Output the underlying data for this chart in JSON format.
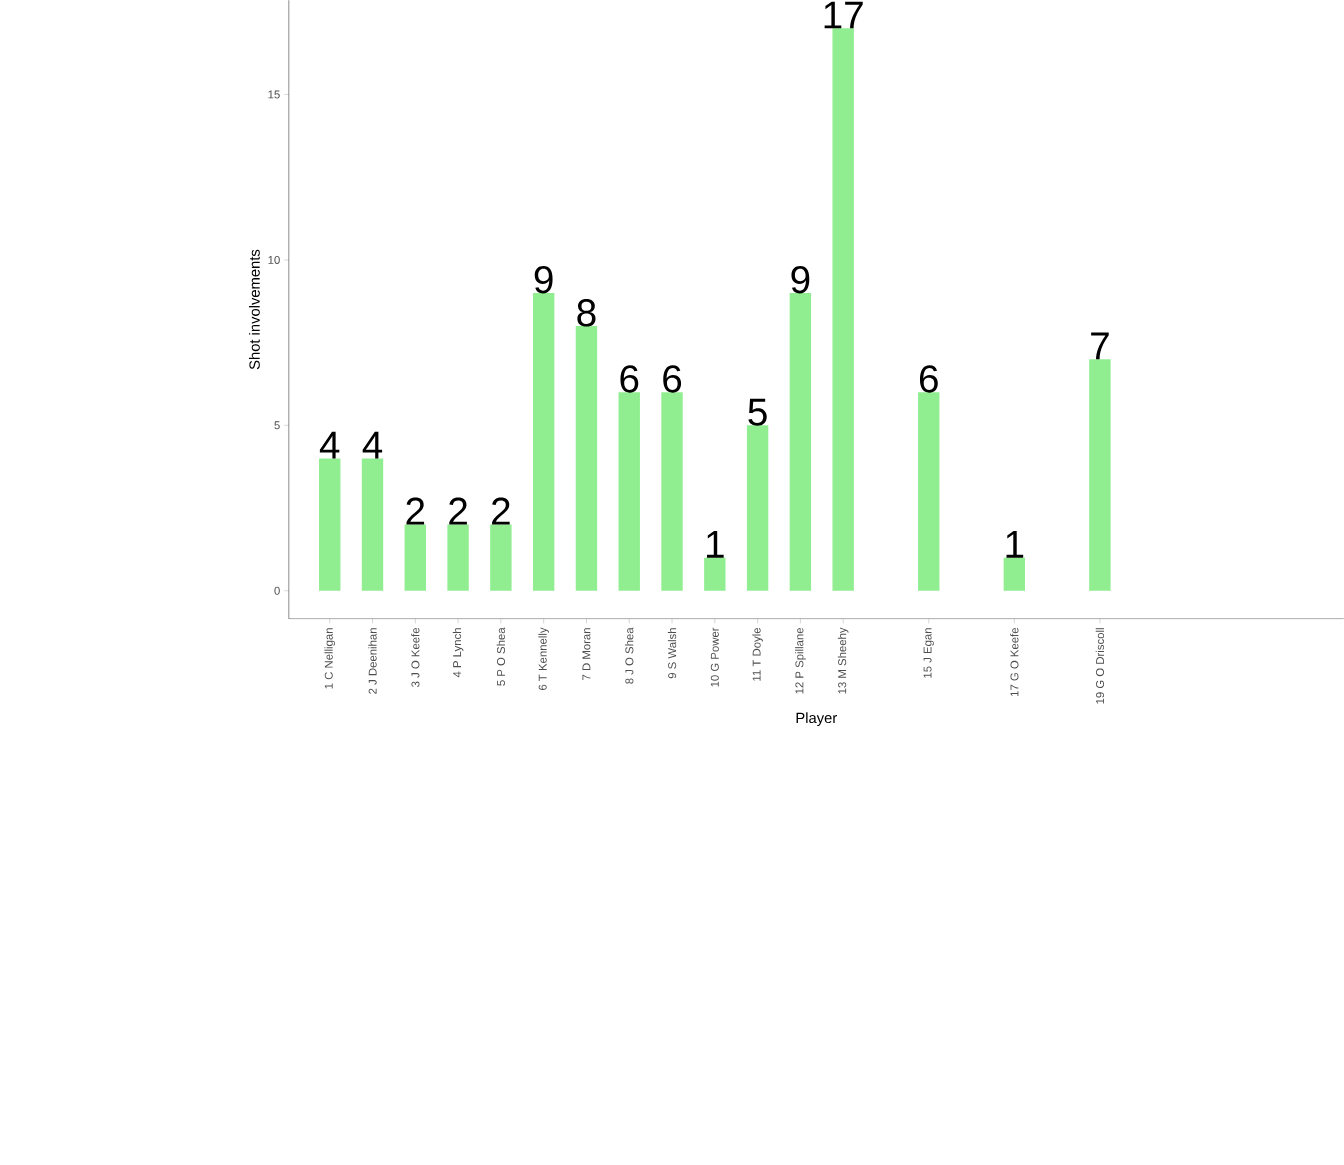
{
  "chart_data": {
    "type": "bar",
    "xlabel": "Player",
    "ylabel": "Shot involvements",
    "categories": [
      "1 C Nelligan",
      "2 J Deenihan",
      "3 J O Keefe",
      "4 P Lynch",
      "5 P O Shea",
      "6 T Kennelly",
      "7 D Moran",
      "8 J O Shea",
      "9 S Walsh",
      "10 G Power",
      "11 T Doyle",
      "12 P Spillane",
      "13 M Sheehy",
      null,
      "15 J Egan",
      null,
      "17 G O Keefe",
      null,
      "19 G O Driscoll",
      null,
      null,
      null,
      null,
      null
    ],
    "values": [
      4,
      4,
      2,
      2,
      2,
      9,
      8,
      6,
      6,
      1,
      5,
      9,
      17,
      null,
      6,
      null,
      1,
      null,
      7,
      null,
      null,
      null,
      null,
      null
    ],
    "value_labels": [
      "4",
      "4",
      "2",
      "2",
      "2",
      "9",
      "8",
      "6",
      "6",
      "1",
      "5",
      "9",
      "17",
      null,
      "6",
      null,
      "1",
      null,
      "7",
      null,
      null,
      null,
      null,
      null
    ],
    "color": "#90ee90",
    "ylim": [
      -0.85,
      17.85
    ],
    "yticks": [
      0,
      5,
      10,
      15
    ]
  }
}
